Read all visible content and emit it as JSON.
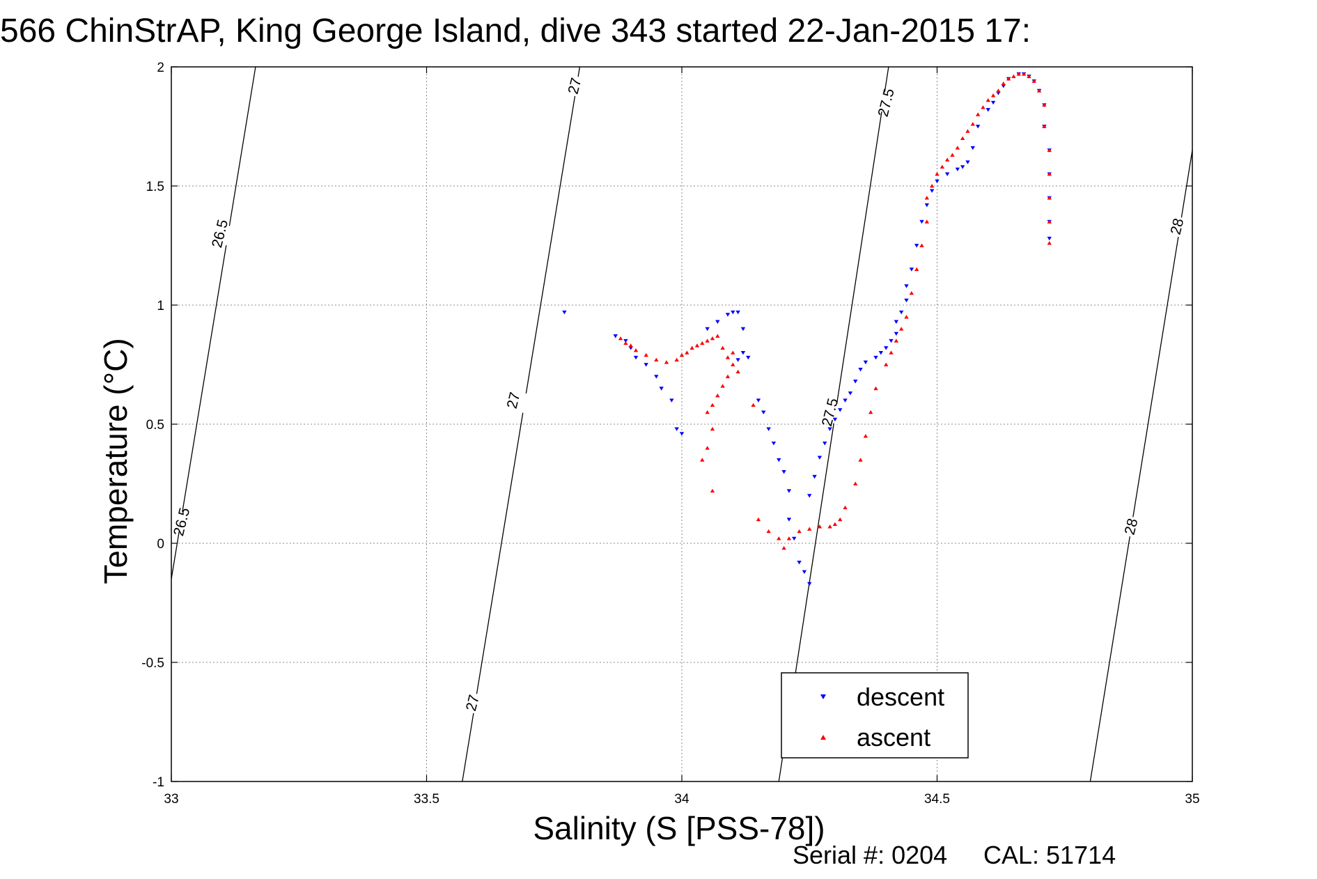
{
  "chart_data": {
    "type": "scatter",
    "title": "566 ChinStrAP, King George Island, dive 343 started 22-Jan-2015 17:",
    "xlabel": "Salinity (S [PSS-78])",
    "ylabel": "Temperature (°C)",
    "xlim": [
      33,
      35
    ],
    "ylim": [
      -1,
      2
    ],
    "x_ticks": [
      "33",
      "33.5",
      "34",
      "34.5",
      "35"
    ],
    "y_ticks": [
      "-1",
      "-0.5",
      "0",
      "0.5",
      "1",
      "1.5",
      "2"
    ],
    "grid": true,
    "legend_position": "bottom-right",
    "density_contours": [
      {
        "label": "26.5",
        "line": [
          [
            33.0,
            -0.15
          ],
          [
            33.165,
            2.0
          ]
        ]
      },
      {
        "label": "27",
        "line": [
          [
            33.57,
            -1.0
          ],
          [
            33.8,
            2.0
          ]
        ]
      },
      {
        "label": "27.5",
        "line": [
          [
            34.19,
            -1.0
          ],
          [
            34.405,
            2.0
          ]
        ]
      },
      {
        "label": "28",
        "line": [
          [
            34.8,
            -1.0
          ],
          [
            35.0,
            1.65
          ]
        ]
      }
    ],
    "contour_labels": [
      {
        "text": "26.5",
        "at": [
          33.095,
          1.3
        ]
      },
      {
        "text": "26.5",
        "at": [
          33.02,
          0.09
        ]
      },
      {
        "text": "27",
        "at": [
          33.79,
          1.92
        ]
      },
      {
        "text": "27",
        "at": [
          33.67,
          0.6
        ]
      },
      {
        "text": "27",
        "at": [
          33.59,
          -0.67
        ]
      },
      {
        "text": "27.5",
        "at": [
          34.4,
          1.85
        ]
      },
      {
        "text": "27.5",
        "at": [
          34.29,
          0.55
        ]
      },
      {
        "text": "28",
        "at": [
          34.97,
          1.33
        ]
      },
      {
        "text": "28",
        "at": [
          34.88,
          0.07
        ]
      }
    ],
    "series": [
      {
        "name": "descent",
        "color": "#0000ff",
        "marker": "triangle-down",
        "points": [
          [
            33.77,
            0.97
          ],
          [
            33.87,
            0.87
          ],
          [
            33.89,
            0.85
          ],
          [
            33.9,
            0.82
          ],
          [
            33.91,
            0.78
          ],
          [
            33.93,
            0.75
          ],
          [
            33.95,
            0.7
          ],
          [
            33.96,
            0.65
          ],
          [
            33.98,
            0.6
          ],
          [
            33.99,
            0.48
          ],
          [
            34.0,
            0.46
          ],
          [
            34.05,
            0.9
          ],
          [
            34.07,
            0.93
          ],
          [
            34.09,
            0.96
          ],
          [
            34.1,
            0.97
          ],
          [
            34.11,
            0.97
          ],
          [
            34.12,
            0.9
          ],
          [
            34.12,
            0.8
          ],
          [
            34.13,
            0.78
          ],
          [
            34.11,
            0.77
          ],
          [
            34.15,
            0.6
          ],
          [
            34.16,
            0.55
          ],
          [
            34.17,
            0.48
          ],
          [
            34.18,
            0.42
          ],
          [
            34.19,
            0.35
          ],
          [
            34.2,
            0.3
          ],
          [
            34.21,
            0.22
          ],
          [
            34.21,
            0.1
          ],
          [
            34.22,
            0.02
          ],
          [
            34.23,
            -0.08
          ],
          [
            34.24,
            -0.12
          ],
          [
            34.25,
            -0.17
          ],
          [
            34.25,
            0.2
          ],
          [
            34.26,
            0.28
          ],
          [
            34.27,
            0.36
          ],
          [
            34.28,
            0.42
          ],
          [
            34.29,
            0.48
          ],
          [
            34.3,
            0.52
          ],
          [
            34.31,
            0.56
          ],
          [
            34.32,
            0.6
          ],
          [
            34.33,
            0.63
          ],
          [
            34.34,
            0.68
          ],
          [
            34.35,
            0.73
          ],
          [
            34.36,
            0.76
          ],
          [
            34.38,
            0.78
          ],
          [
            34.39,
            0.8
          ],
          [
            34.4,
            0.82
          ],
          [
            34.41,
            0.85
          ],
          [
            34.42,
            0.88
          ],
          [
            34.42,
            0.93
          ],
          [
            34.43,
            0.97
          ],
          [
            34.44,
            1.02
          ],
          [
            34.44,
            1.08
          ],
          [
            34.45,
            1.15
          ],
          [
            34.46,
            1.25
          ],
          [
            34.47,
            1.35
          ],
          [
            34.48,
            1.42
          ],
          [
            34.49,
            1.48
          ],
          [
            34.5,
            1.52
          ],
          [
            34.52,
            1.55
          ],
          [
            34.54,
            1.57
          ],
          [
            34.55,
            1.58
          ],
          [
            34.56,
            1.6
          ],
          [
            34.57,
            1.66
          ],
          [
            34.58,
            1.75
          ],
          [
            34.6,
            1.82
          ],
          [
            34.61,
            1.85
          ],
          [
            34.62,
            1.89
          ],
          [
            34.63,
            1.92
          ],
          [
            34.64,
            1.95
          ],
          [
            34.66,
            1.97
          ],
          [
            34.67,
            1.97
          ],
          [
            34.68,
            1.96
          ],
          [
            34.69,
            1.94
          ],
          [
            34.7,
            1.9
          ],
          [
            34.71,
            1.84
          ],
          [
            34.71,
            1.75
          ],
          [
            34.72,
            1.65
          ],
          [
            34.72,
            1.55
          ],
          [
            34.72,
            1.45
          ],
          [
            34.72,
            1.35
          ],
          [
            34.72,
            1.28
          ]
        ]
      },
      {
        "name": "ascent",
        "color": "#ff0000",
        "marker": "triangle-up",
        "points": [
          [
            33.88,
            0.86
          ],
          [
            33.89,
            0.84
          ],
          [
            33.9,
            0.83
          ],
          [
            33.91,
            0.81
          ],
          [
            33.93,
            0.79
          ],
          [
            33.95,
            0.77
          ],
          [
            33.97,
            0.76
          ],
          [
            33.99,
            0.77
          ],
          [
            34.0,
            0.79
          ],
          [
            34.01,
            0.8
          ],
          [
            34.02,
            0.82
          ],
          [
            34.03,
            0.83
          ],
          [
            34.04,
            0.84
          ],
          [
            34.05,
            0.85
          ],
          [
            34.06,
            0.86
          ],
          [
            34.07,
            0.87
          ],
          [
            34.08,
            0.82
          ],
          [
            34.09,
            0.78
          ],
          [
            34.1,
            0.75
          ],
          [
            34.11,
            0.72
          ],
          [
            34.1,
            0.8
          ],
          [
            34.09,
            0.7
          ],
          [
            34.08,
            0.66
          ],
          [
            34.07,
            0.62
          ],
          [
            34.06,
            0.58
          ],
          [
            34.05,
            0.55
          ],
          [
            34.06,
            0.48
          ],
          [
            34.05,
            0.4
          ],
          [
            34.04,
            0.35
          ],
          [
            34.06,
            0.22
          ],
          [
            34.14,
            0.58
          ],
          [
            34.15,
            0.1
          ],
          [
            34.17,
            0.05
          ],
          [
            34.19,
            0.02
          ],
          [
            34.2,
            -0.02
          ],
          [
            34.21,
            0.02
          ],
          [
            34.23,
            0.05
          ],
          [
            34.25,
            0.06
          ],
          [
            34.27,
            0.07
          ],
          [
            34.29,
            0.07
          ],
          [
            34.3,
            0.08
          ],
          [
            34.31,
            0.1
          ],
          [
            34.32,
            0.15
          ],
          [
            34.34,
            0.25
          ],
          [
            34.35,
            0.35
          ],
          [
            34.36,
            0.45
          ],
          [
            34.37,
            0.55
          ],
          [
            34.38,
            0.65
          ],
          [
            34.4,
            0.75
          ],
          [
            34.41,
            0.8
          ],
          [
            34.42,
            0.85
          ],
          [
            34.43,
            0.9
          ],
          [
            34.44,
            0.95
          ],
          [
            34.45,
            1.05
          ],
          [
            34.46,
            1.15
          ],
          [
            34.47,
            1.25
          ],
          [
            34.48,
            1.35
          ],
          [
            34.48,
            1.45
          ],
          [
            34.49,
            1.5
          ],
          [
            34.5,
            1.55
          ],
          [
            34.51,
            1.58
          ],
          [
            34.52,
            1.61
          ],
          [
            34.53,
            1.63
          ],
          [
            34.54,
            1.66
          ],
          [
            34.55,
            1.7
          ],
          [
            34.56,
            1.73
          ],
          [
            34.57,
            1.76
          ],
          [
            34.58,
            1.8
          ],
          [
            34.59,
            1.83
          ],
          [
            34.6,
            1.86
          ],
          [
            34.61,
            1.88
          ],
          [
            34.62,
            1.9
          ],
          [
            34.63,
            1.93
          ],
          [
            34.64,
            1.95
          ],
          [
            34.65,
            1.96
          ],
          [
            34.66,
            1.97
          ],
          [
            34.67,
            1.97
          ],
          [
            34.68,
            1.96
          ],
          [
            34.69,
            1.94
          ],
          [
            34.7,
            1.9
          ],
          [
            34.71,
            1.84
          ],
          [
            34.71,
            1.75
          ],
          [
            34.72,
            1.65
          ],
          [
            34.72,
            1.55
          ],
          [
            34.72,
            1.45
          ],
          [
            34.72,
            1.35
          ],
          [
            34.72,
            1.26
          ]
        ]
      }
    ]
  },
  "footer": {
    "serial_text": "Serial #: 0204",
    "cal_text": "CAL: 51714"
  }
}
